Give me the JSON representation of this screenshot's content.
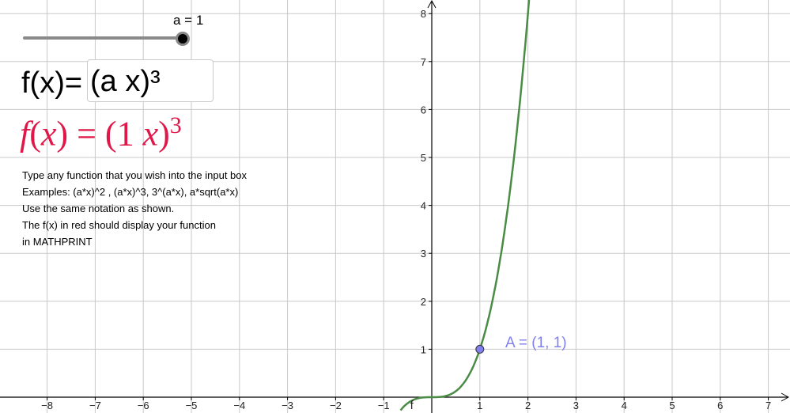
{
  "slider": {
    "label": "a = 1",
    "value": 1,
    "fraction": 1.0
  },
  "input": {
    "prefix": "f(x)=",
    "value": "(a x)³"
  },
  "math_display": {
    "lhs": "f",
    "arg": "x",
    "eq": "=",
    "coef": "1",
    "var": "x",
    "exp": "3",
    "color": "#e0184a"
  },
  "instructions": [
    "Type any function that you wish into the input box",
    "Examples: (a*x)^2 , (a*x)^3, 3^(a*x), a*sqrt(a*x)",
    "Use the same notation as shown.",
    "The f(x) in red should display your function",
    "in MATHPRINT"
  ],
  "point": {
    "label": "A = (1, 1)",
    "x": 1,
    "y": 1,
    "color": "#8080f0"
  },
  "chart_data": {
    "type": "line",
    "function": "f(x) = (a x)^3",
    "curve_label": "f",
    "curve_color": "#4a8c45",
    "xlim": [
      -9,
      7.5
    ],
    "ylim": [
      -0.3,
      8.3
    ],
    "x_ticks": [
      -8,
      -7,
      -6,
      -5,
      -4,
      -3,
      -2,
      -1,
      1,
      2,
      3,
      4,
      5,
      6,
      7
    ],
    "y_ticks": [
      1,
      2,
      3,
      4,
      5,
      6,
      7,
      8
    ],
    "grid": true
  }
}
